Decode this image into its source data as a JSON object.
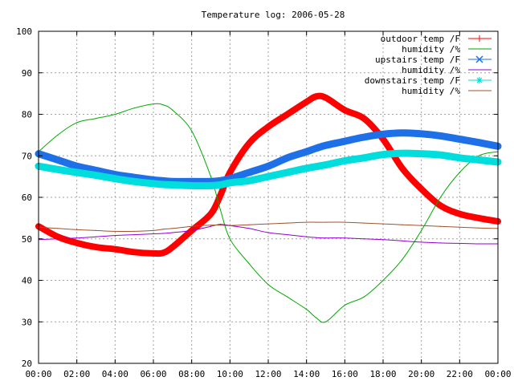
{
  "chart_data": {
    "type": "line",
    "title": "Temperature log: 2006-05-28",
    "xlabel": "",
    "ylabel": "",
    "xlim": [
      "00:00",
      "24:00"
    ],
    "ylim": [
      20,
      100
    ],
    "grid": true,
    "legend_position": "top-right",
    "x_tick_labels": [
      "00:00",
      "02:00",
      "04:00",
      "06:00",
      "08:00",
      "10:00",
      "12:00",
      "14:00",
      "16:00",
      "18:00",
      "20:00",
      "22:00",
      "00:00"
    ],
    "y_tick_labels": [
      "20",
      "30",
      "40",
      "50",
      "60",
      "70",
      "80",
      "90",
      "100"
    ],
    "y_ticks": [
      20,
      30,
      40,
      50,
      60,
      70,
      80,
      90,
      100
    ],
    "x_hours": [
      0,
      1,
      2,
      3,
      4,
      5,
      6,
      6.5,
      7,
      8,
      9,
      9.5,
      10,
      11,
      12,
      13,
      14,
      14.5,
      15,
      16,
      17,
      18,
      19,
      20,
      21,
      22,
      23,
      24
    ],
    "series": [
      {
        "name": "outdoor temp /F",
        "color": "#ff0000",
        "marker": "plus",
        "values": [
          53,
          50.5,
          49,
          48,
          47.5,
          46.8,
          46.5,
          46.6,
          48,
          52,
          56,
          60.5,
          66,
          73,
          77,
          80,
          83,
          84.3,
          84,
          81,
          79,
          74,
          67,
          62,
          58,
          56,
          55,
          54.2
        ]
      },
      {
        "name": "humidity /%",
        "color": "#00aa00",
        "marker": "none",
        "values": [
          71,
          75,
          78,
          79,
          80,
          81.5,
          82.5,
          82.3,
          81,
          76,
          65,
          57,
          50,
          44,
          39,
          36,
          33,
          31,
          30,
          34,
          36,
          40,
          45,
          52,
          60,
          66,
          70,
          71
        ]
      },
      {
        "name": "upstairs temp /F",
        "color": "#1e70e8",
        "marker": "x",
        "values": [
          70.5,
          69,
          67.5,
          66.5,
          65.5,
          64.8,
          64.2,
          64,
          63.8,
          63.8,
          63.8,
          64,
          64.5,
          66,
          67.5,
          69.5,
          71,
          71.8,
          72.5,
          73.5,
          74.5,
          75.2,
          75.5,
          75.3,
          74.8,
          74,
          73.2,
          72.3
        ]
      },
      {
        "name": "humidity /%",
        "color": "#9400d3",
        "marker": "none",
        "values": [
          49.8,
          50,
          50.2,
          50.5,
          50.8,
          51,
          51.2,
          51.3,
          51.5,
          52,
          53,
          53.5,
          53.2,
          52.5,
          51.5,
          51,
          50.5,
          50.3,
          50.2,
          50.2,
          50,
          49.8,
          49.5,
          49.2,
          49,
          48.9,
          48.8,
          48.8
        ]
      },
      {
        "name": "downstairs temp /F",
        "color": "#00dddd",
        "marker": "star",
        "values": [
          67.5,
          66.7,
          66,
          65.3,
          64.5,
          63.8,
          63.3,
          63.1,
          63,
          62.8,
          62.8,
          63,
          63.5,
          64,
          65,
          66,
          67,
          67.4,
          67.8,
          68.8,
          69.5,
          70.3,
          70.6,
          70.5,
          70.2,
          69.5,
          69,
          68.5
        ]
      },
      {
        "name": "humidity /%",
        "color": "#a0522d",
        "marker": "none",
        "values": [
          52.8,
          52.5,
          52.2,
          52,
          51.8,
          51.8,
          52,
          52.3,
          52.5,
          53,
          53.3,
          53.3,
          53.2,
          53.4,
          53.6,
          53.8,
          54,
          54,
          54,
          54,
          53.8,
          53.6,
          53.4,
          53.2,
          53,
          52.8,
          52.6,
          52.5
        ]
      }
    ]
  }
}
